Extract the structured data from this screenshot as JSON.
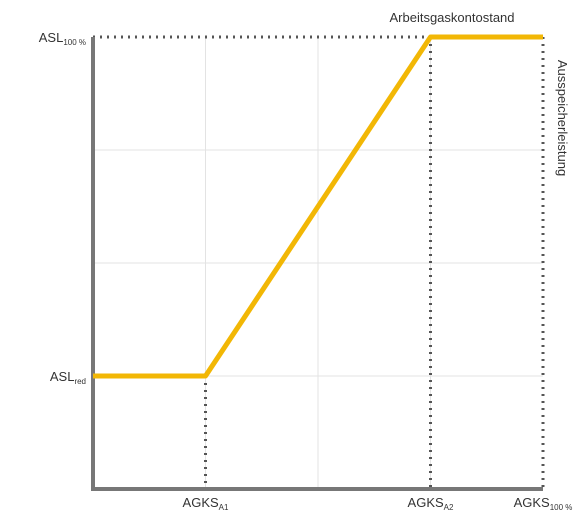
{
  "chart_data": {
    "type": "line",
    "x_label": "Arbeitsgaskontostand",
    "y_label": "Ausspeicherleistung",
    "x": [
      0,
      1,
      3,
      4
    ],
    "series": [
      {
        "color": "#f2b705",
        "values": [
          1,
          1,
          4,
          4
        ]
      }
    ],
    "xlim": [
      0,
      4
    ],
    "ylim": [
      0,
      4
    ],
    "xticks": [
      {
        "value": 1,
        "label": "AGKS",
        "sub": "A1"
      },
      {
        "value": 3,
        "label": "AGKS",
        "sub": "A2"
      },
      {
        "value": 4,
        "label": "AGKS",
        "sub": "100 %"
      }
    ],
    "yticks": [
      {
        "value": 1,
        "label": "ASL",
        "sub": "red"
      },
      {
        "value": 4,
        "label": "ASL",
        "sub": "100 %"
      }
    ],
    "grid": true
  }
}
